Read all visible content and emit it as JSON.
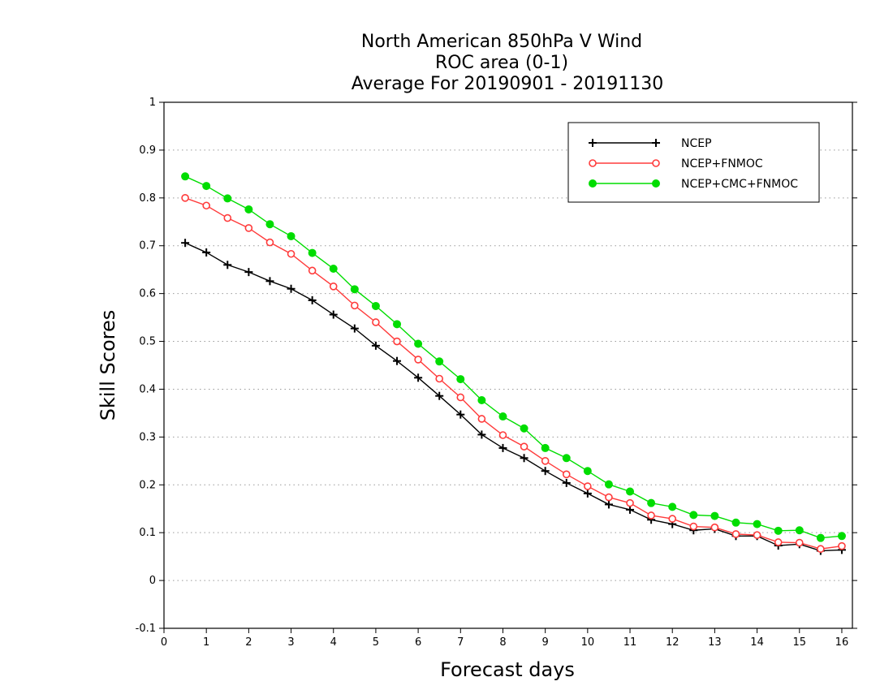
{
  "chart_data": {
    "type": "line",
    "title": [
      "North American 850hPa V Wind",
      "ROC area (0-1)",
      "Average For 20190901 - 20191130"
    ],
    "xlabel": "Forecast days",
    "ylabel": "Skill Scores",
    "xlim": [
      0,
      16.25
    ],
    "ylim": [
      -0.1,
      1
    ],
    "xticks": [
      "0",
      "1",
      "2",
      "3",
      "4",
      "5",
      "6",
      "7",
      "8",
      "9",
      "10",
      "11",
      "12",
      "13",
      "14",
      "15",
      "16"
    ],
    "yticks": [
      "-0.1",
      "0",
      "0.1",
      "0.2",
      "0.3",
      "0.4",
      "0.5",
      "0.6",
      "0.7",
      "0.8",
      "0.9",
      "1"
    ],
    "grid": "horizontal dotted",
    "legend_position": "top-right",
    "x": [
      0.5,
      1,
      1.5,
      2,
      2.5,
      3,
      3.5,
      4,
      4.5,
      5,
      5.5,
      6,
      6.5,
      7,
      7.5,
      8,
      8.5,
      9,
      9.5,
      10,
      10.5,
      11,
      11.5,
      12,
      12.5,
      13,
      13.5,
      14,
      14.5,
      15,
      15.5,
      16
    ],
    "series": [
      {
        "name": "NCEP",
        "color": "#000000",
        "marker": "plus",
        "values": [
          0.706,
          0.686,
          0.66,
          0.645,
          0.626,
          0.61,
          0.586,
          0.556,
          0.527,
          0.491,
          0.459,
          0.424,
          0.386,
          0.347,
          0.305,
          0.277,
          0.256,
          0.229,
          0.204,
          0.182,
          0.159,
          0.148,
          0.127,
          0.118,
          0.105,
          0.108,
          0.093,
          0.093,
          0.073,
          0.076,
          0.062,
          0.064
        ]
      },
      {
        "name": "NCEP+FNMOC",
        "color": "#ff3b3b",
        "marker": "open-circle",
        "values": [
          0.8,
          0.784,
          0.758,
          0.737,
          0.707,
          0.683,
          0.648,
          0.615,
          0.575,
          0.54,
          0.5,
          0.462,
          0.422,
          0.383,
          0.338,
          0.304,
          0.28,
          0.25,
          0.222,
          0.197,
          0.174,
          0.162,
          0.136,
          0.129,
          0.113,
          0.111,
          0.097,
          0.095,
          0.08,
          0.079,
          0.066,
          0.072
        ]
      },
      {
        "name": "NCEP+CMC+FNMOC",
        "color": "#00dd00",
        "marker": "filled-circle",
        "values": [
          0.845,
          0.825,
          0.799,
          0.776,
          0.745,
          0.72,
          0.685,
          0.652,
          0.609,
          0.574,
          0.536,
          0.495,
          0.458,
          0.421,
          0.377,
          0.343,
          0.318,
          0.277,
          0.256,
          0.229,
          0.201,
          0.186,
          0.162,
          0.154,
          0.137,
          0.135,
          0.121,
          0.118,
          0.104,
          0.105,
          0.089,
          0.093
        ]
      }
    ]
  }
}
